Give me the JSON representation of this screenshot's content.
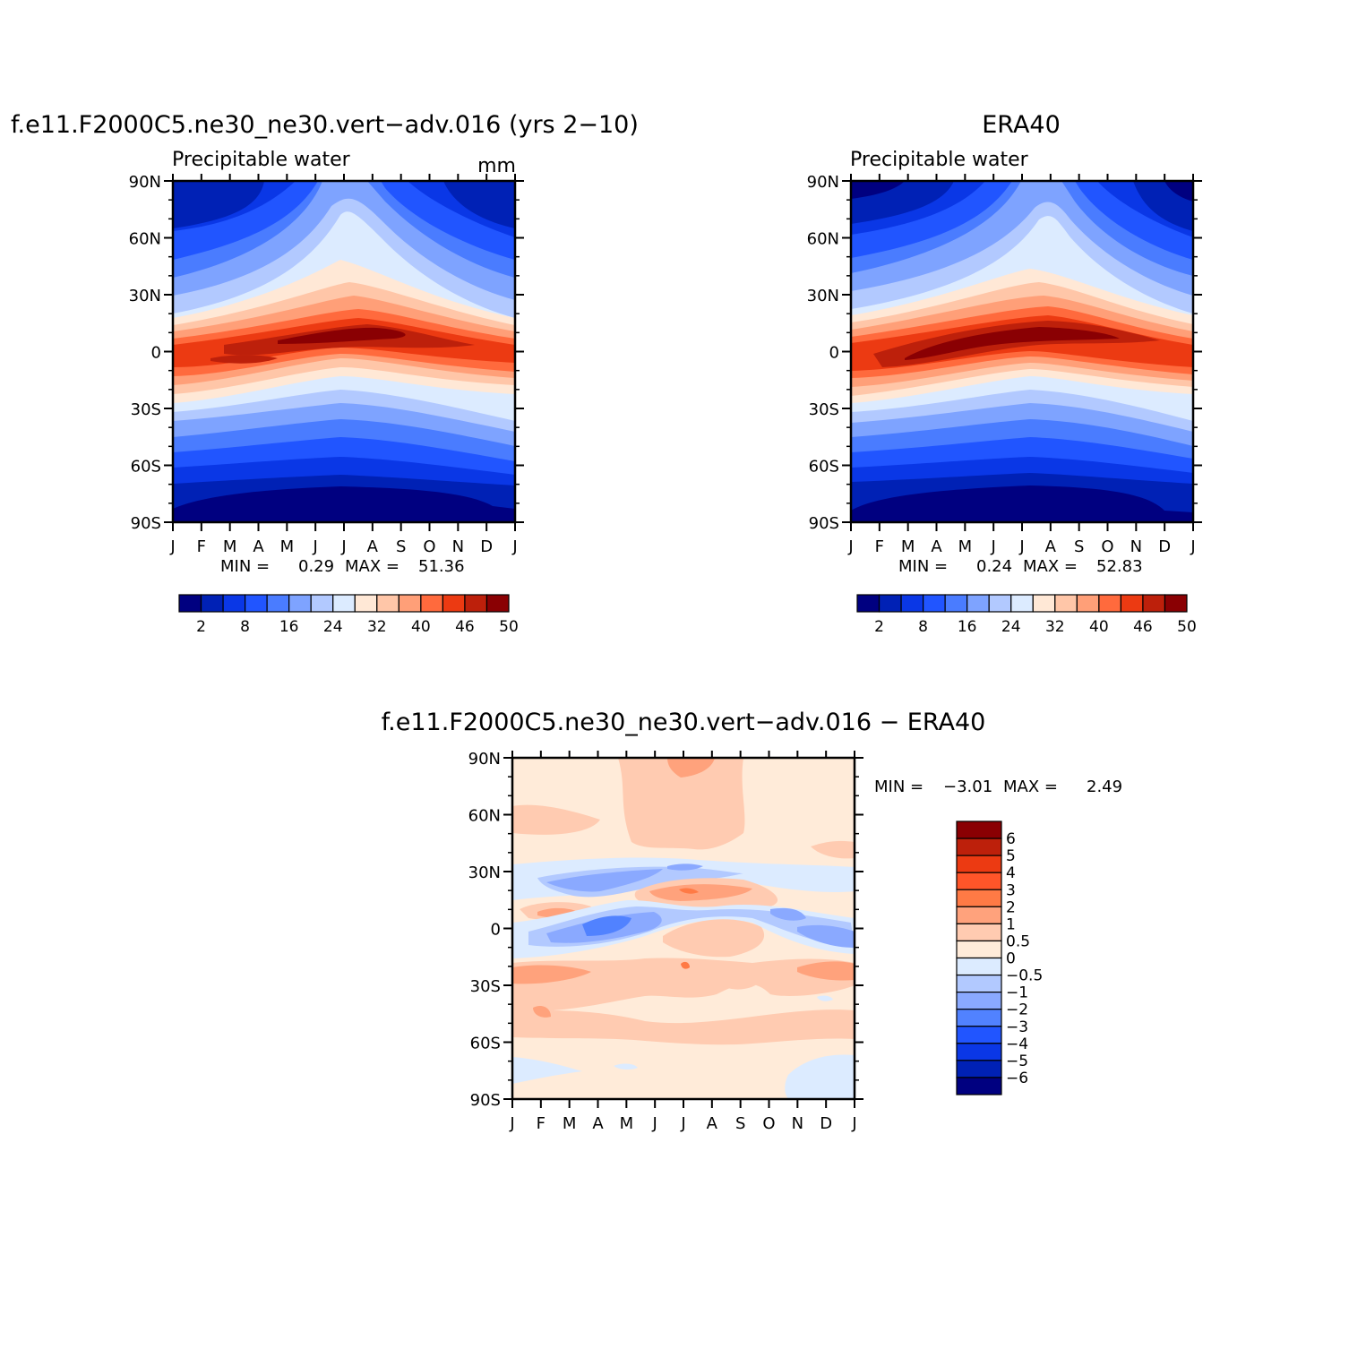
{
  "chart_data": [
    {
      "type": "heatmap",
      "title": "f.e11.F2000C5.ne30_ne30.vert−adv.016 (yrs 2−10)",
      "subtitle": "Precipitable water",
      "units": "mm",
      "x_tick_labels": [
        "J",
        "F",
        "M",
        "A",
        "M",
        "J",
        "J",
        "A",
        "S",
        "O",
        "N",
        "D",
        "J"
      ],
      "y_tick_labels": [
        "90N",
        "60N",
        "30N",
        "0",
        "30S",
        "60S",
        "90S"
      ],
      "y_range": [
        -90,
        90
      ],
      "min_label": "MIN =",
      "min_value": "0.29",
      "max_label": "MAX =",
      "max_value": "51.36",
      "colorbar_labels": [
        "2",
        "8",
        "16",
        "24",
        "32",
        "40",
        "46",
        "50"
      ],
      "colorbar_colors": [
        "#000080",
        "#0021b5",
        "#0a37e6",
        "#2155ff",
        "#4a7cff",
        "#7ea3ff",
        "#b2c9ff",
        "#dcebff",
        "#ffe8d6",
        "#ffc6a8",
        "#ff9f78",
        "#ff6a3d",
        "#ec3a12",
        "#bd200b",
        "#8a0003"
      ],
      "notes": "Zonal-mean seasonal cycle; high values (~50) along equator shifting north in Jun-Sep, low values (~1-2) at poles."
    },
    {
      "type": "heatmap",
      "title": "ERA40",
      "subtitle": "Precipitable water",
      "x_tick_labels": [
        "J",
        "F",
        "M",
        "A",
        "M",
        "J",
        "J",
        "A",
        "S",
        "O",
        "N",
        "D",
        "J"
      ],
      "y_tick_labels": [
        "90N",
        "60N",
        "30N",
        "0",
        "30S",
        "60S",
        "90S"
      ],
      "y_range": [
        -90,
        90
      ],
      "min_label": "MIN =",
      "min_value": "0.24",
      "max_label": "MAX =",
      "max_value": "52.83",
      "colorbar_labels": [
        "2",
        "8",
        "16",
        "24",
        "32",
        "40",
        "46",
        "50"
      ],
      "colorbar_colors": [
        "#000080",
        "#0021b5",
        "#0a37e6",
        "#2155ff",
        "#4a7cff",
        "#7ea3ff",
        "#b2c9ff",
        "#dcebff",
        "#ffe8d6",
        "#ffc6a8",
        "#ff9f78",
        "#ff6a3d",
        "#ec3a12",
        "#bd200b",
        "#8a0003"
      ]
    },
    {
      "type": "heatmap",
      "title": "f.e11.F2000C5.ne30_ne30.vert−adv.016 − ERA40",
      "x_tick_labels": [
        "J",
        "F",
        "M",
        "A",
        "M",
        "J",
        "J",
        "A",
        "S",
        "O",
        "N",
        "D",
        "J"
      ],
      "y_tick_labels": [
        "90N",
        "60N",
        "30N",
        "0",
        "30S",
        "60S",
        "90S"
      ],
      "y_range": [
        -90,
        90
      ],
      "min_label": "MIN =",
      "min_value": "−3.01",
      "max_label": "MAX =",
      "max_value": "2.49",
      "colorbar_labels": [
        "6",
        "5",
        "4",
        "3",
        "2",
        "1",
        "0.5",
        "0",
        "−0.5",
        "−1",
        "−2",
        "−3",
        "−4",
        "−5",
        "−6"
      ],
      "colorbar_colors": [
        "#8a0003",
        "#bd200b",
        "#ec3a12",
        "#ff5529",
        "#ff7a45",
        "#ffa27c",
        "#ffcbb1",
        "#ffebd9",
        "#dcebff",
        "#b2c9ff",
        "#8aa9ff",
        "#5182ff",
        "#2155ff",
        "#0a37e6",
        "#0021b5",
        "#000080"
      ],
      "notes": "Difference field mostly +0.5 to +2 (light orange) with negative bands (-1 to -3) near 25N and 0-10N."
    }
  ]
}
